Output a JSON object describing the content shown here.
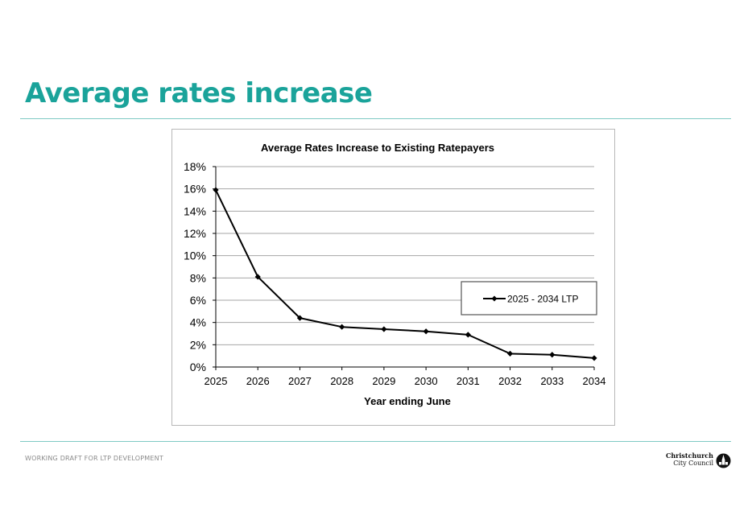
{
  "slide": {
    "title": "Average rates increase",
    "footer_note": "WORKING DRAFT FOR LTP DEVELOPMENT",
    "logo_line1": "Christchurch",
    "logo_line2": "City Council"
  },
  "chart_data": {
    "type": "line",
    "title": "Average Rates Increase to Existing Ratepayers",
    "xlabel": "Year ending June",
    "ylabel": "",
    "categories": [
      "2025",
      "2026",
      "2027",
      "2028",
      "2029",
      "2030",
      "2031",
      "2032",
      "2033",
      "2034"
    ],
    "series": [
      {
        "name": "2025 - 2034 LTP",
        "values": [
          15.9,
          8.1,
          4.4,
          3.6,
          3.4,
          3.2,
          2.9,
          1.2,
          1.1,
          0.8
        ],
        "color": "#000000",
        "marker": "diamond"
      }
    ],
    "ylim": [
      0,
      18
    ],
    "yticks": [
      0,
      2,
      4,
      6,
      8,
      10,
      12,
      14,
      16,
      18
    ],
    "ytick_format": "percent",
    "grid": "horizontal",
    "legend_position": "right"
  }
}
